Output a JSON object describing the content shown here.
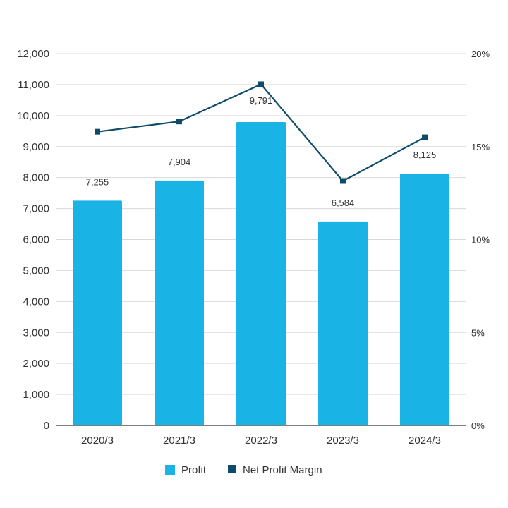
{
  "chart_data": {
    "type": "bar",
    "categories": [
      "2020/3",
      "2021/3",
      "2022/3",
      "2023/3",
      "2024/3"
    ],
    "series": [
      {
        "name": "Profit",
        "type": "bar",
        "axis": "left",
        "values": [
          7255,
          7904,
          9791,
          6584,
          8125
        ],
        "labels": [
          "7,255",
          "7,904",
          "9,791",
          "6,584",
          "8,125"
        ],
        "color": "#1ab3e6"
      },
      {
        "name": "Net Profit Margin",
        "type": "line",
        "axis": "right",
        "values": [
          15.8,
          16.35,
          18.35,
          13.15,
          15.5
        ],
        "color": "#0e4b6b"
      }
    ],
    "y_left": {
      "ylim": [
        0,
        12000
      ],
      "ticks": [
        0,
        1000,
        2000,
        3000,
        4000,
        5000,
        6000,
        7000,
        8000,
        9000,
        10000,
        11000,
        12000
      ],
      "tick_labels": [
        "0",
        "1,000",
        "2,000",
        "3,000",
        "4,000",
        "5,000",
        "6,000",
        "7,000",
        "8,000",
        "9,000",
        "10,000",
        "11,000",
        "12,000"
      ]
    },
    "y_right": {
      "ylim": [
        0,
        20
      ],
      "ticks": [
        0,
        5,
        10,
        15,
        20
      ],
      "tick_labels": [
        "0%",
        "5%",
        "10%",
        "15%",
        "20%"
      ]
    },
    "grid": true,
    "legend": "bottom"
  },
  "legend": {
    "items": [
      {
        "label": "Profit",
        "color": "#1ab3e6"
      },
      {
        "label": "Net Profit Margin",
        "color": "#0e4b6b"
      }
    ]
  }
}
